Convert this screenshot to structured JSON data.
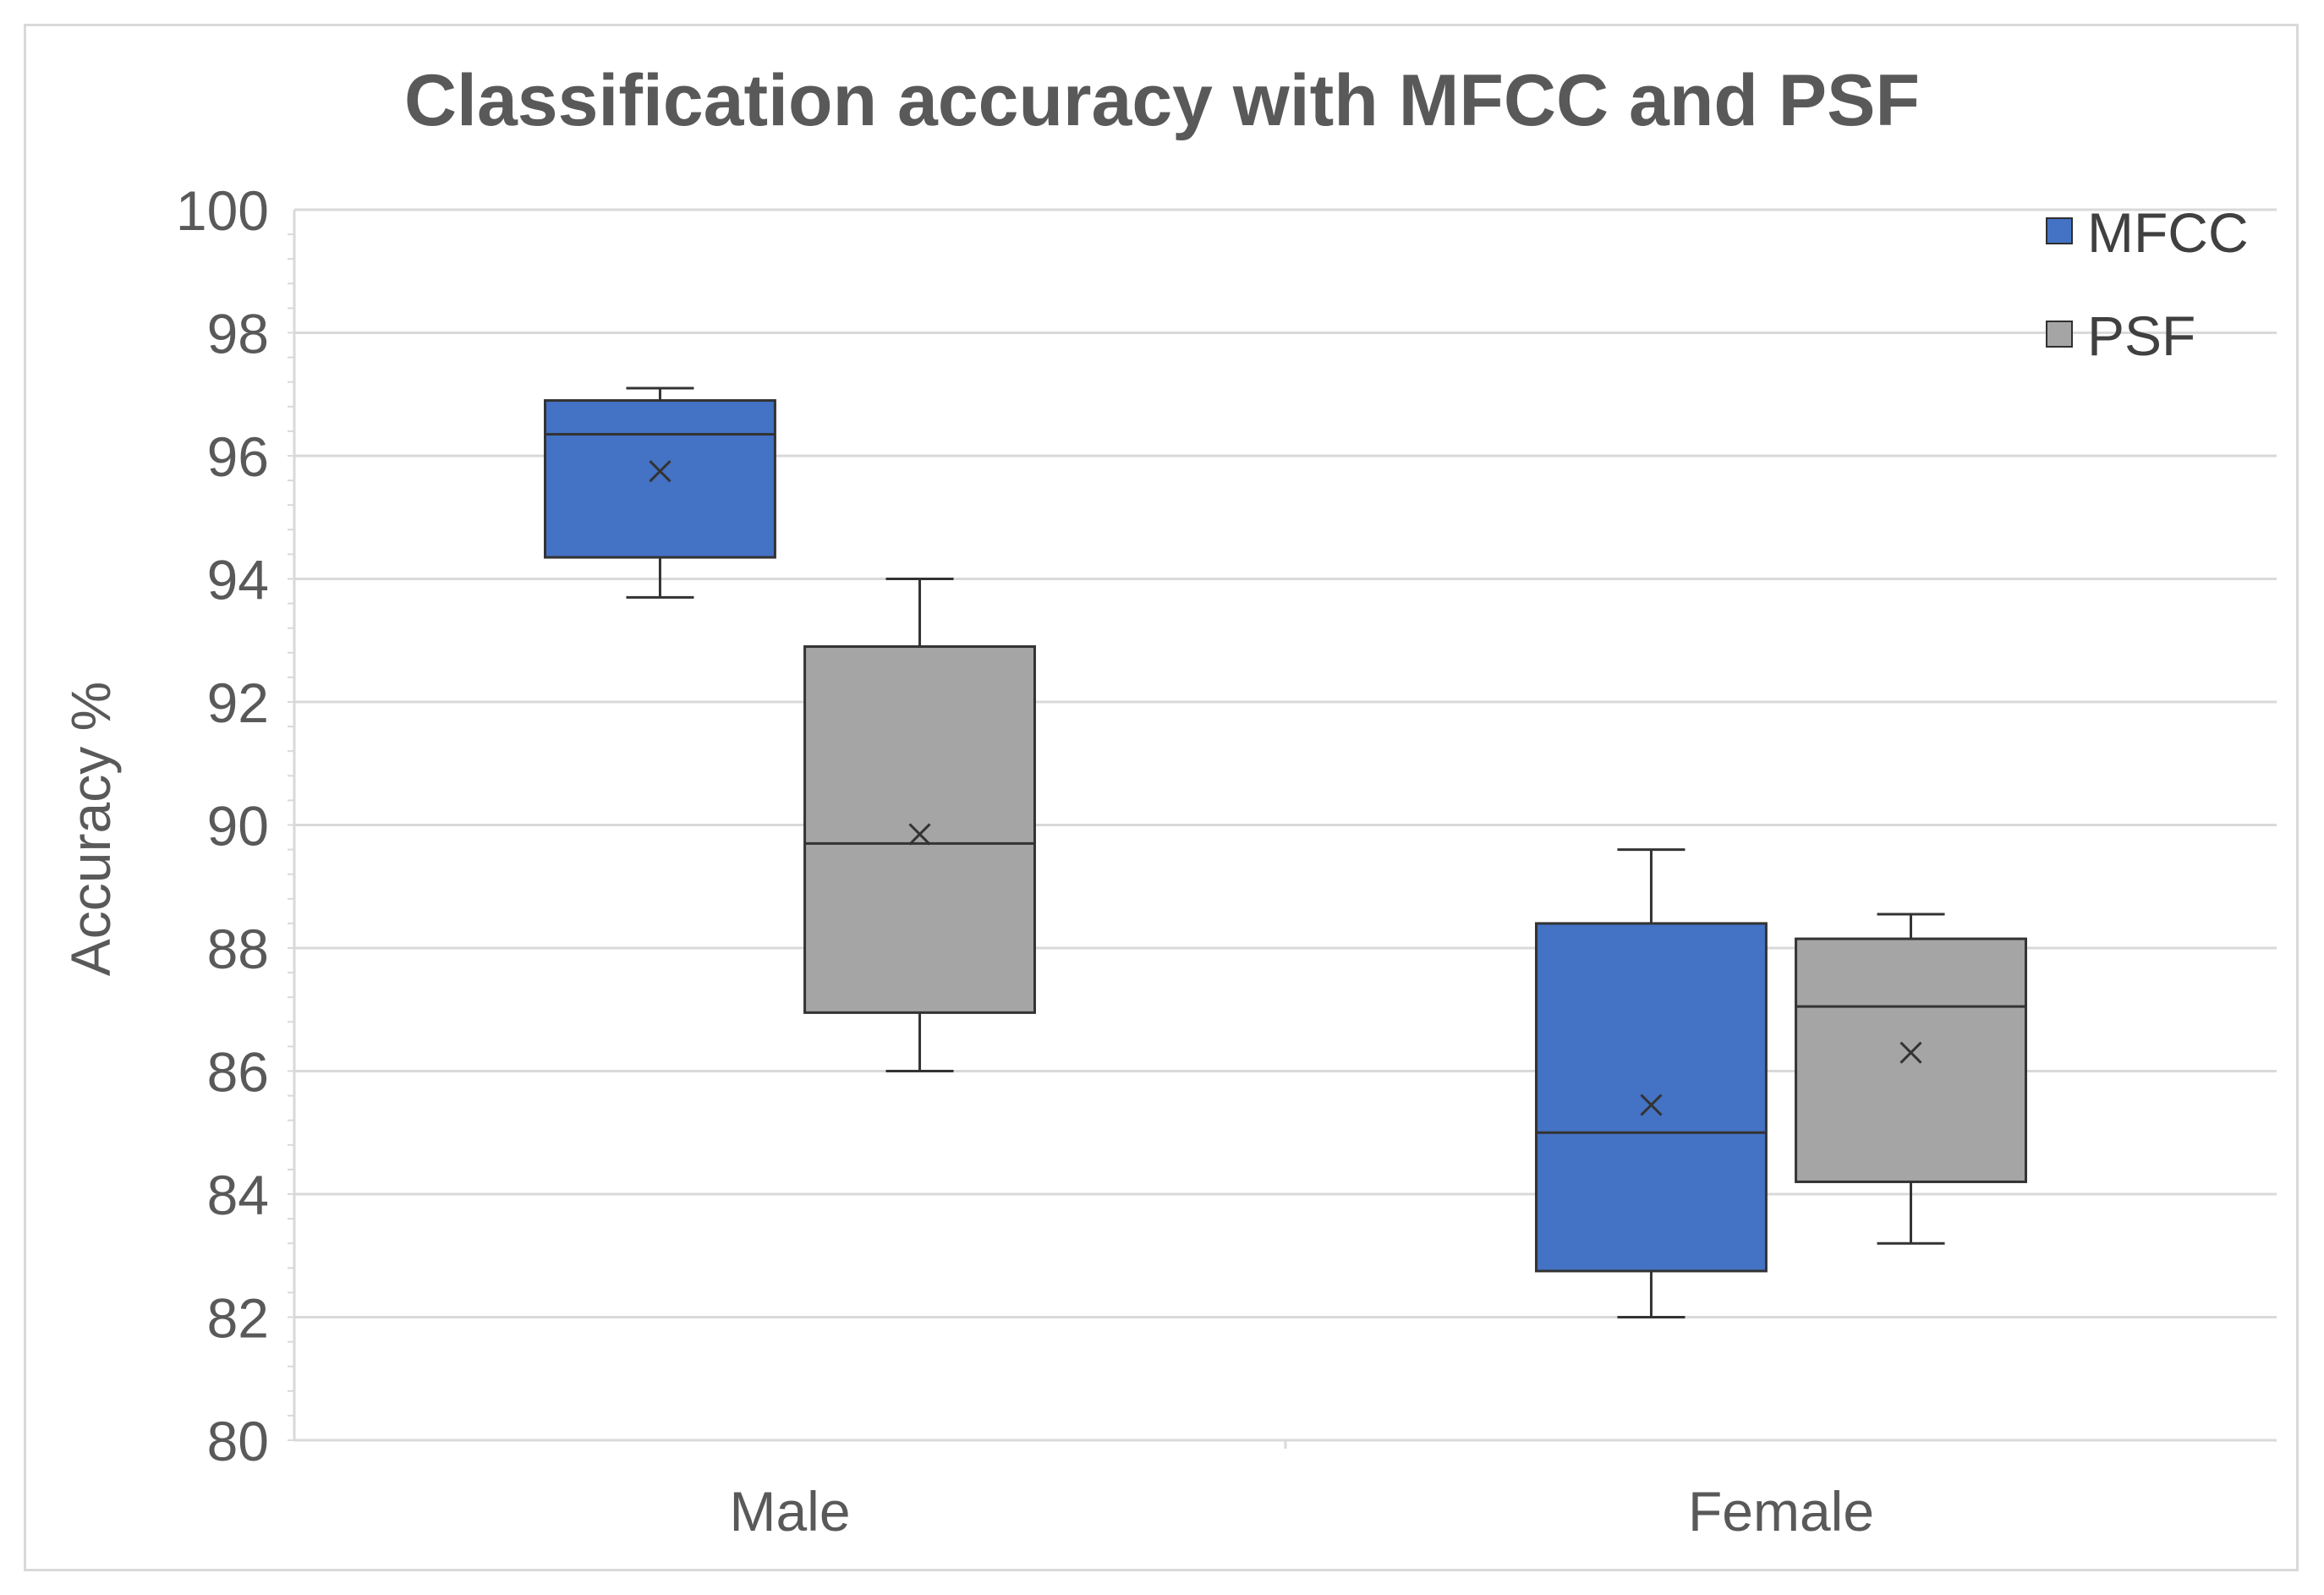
{
  "chart_data": {
    "type": "box",
    "title": "Classification accuracy with MFCC and PSF",
    "xlabel": "",
    "ylabel": "Accuracy %",
    "ylim": [
      80,
      100
    ],
    "yticks": [
      "80",
      "82",
      "84",
      "86",
      "88",
      "90",
      "92",
      "94",
      "96",
      "98",
      "100"
    ],
    "categories": [
      "Male",
      "Female"
    ],
    "grid": true,
    "legend_position": "top-right",
    "series": [
      {
        "name": "MFCC",
        "color": "#4472c4",
        "boxes": [
          {
            "category": "Male",
            "min": 93.7,
            "q1": 94.35,
            "median": 96.35,
            "q3": 96.9,
            "max": 97.1,
            "mean": 95.75
          },
          {
            "category": "Female",
            "min": 82.0,
            "q1": 82.75,
            "median": 85.0,
            "q3": 88.4,
            "max": 89.6,
            "mean": 85.45
          }
        ]
      },
      {
        "name": "PSF",
        "color": "#a5a5a5",
        "boxes": [
          {
            "category": "Male",
            "min": 86.0,
            "q1": 86.95,
            "median": 89.7,
            "q3": 92.9,
            "max": 94.0,
            "mean": 89.85
          },
          {
            "category": "Female",
            "min": 83.2,
            "q1": 84.2,
            "median": 87.05,
            "q3": 88.15,
            "max": 88.55,
            "mean": 86.3
          }
        ]
      }
    ]
  }
}
